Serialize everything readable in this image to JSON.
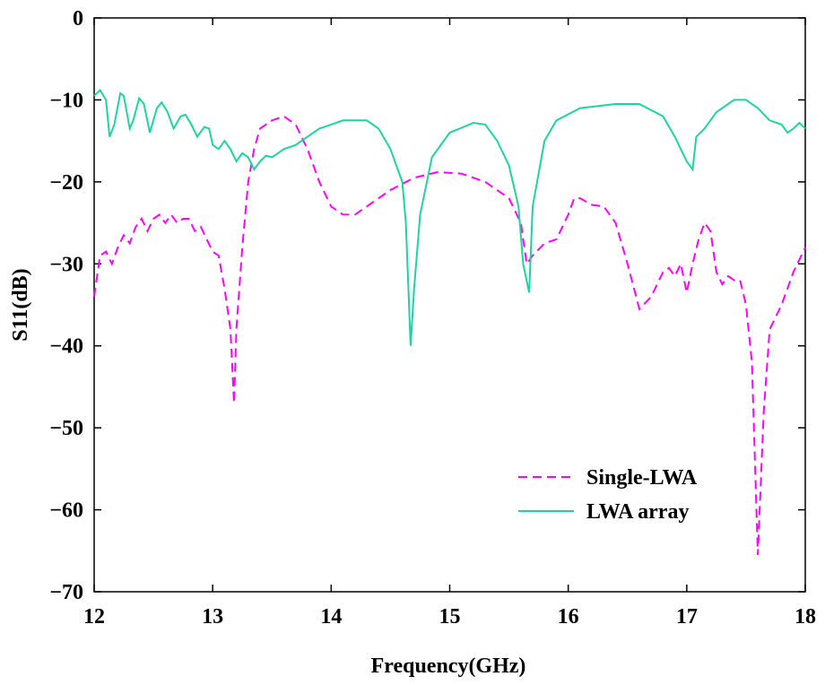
{
  "chart_data": {
    "type": "line",
    "xlabel": "Frequency(GHz)",
    "ylabel": "S11(dB)",
    "xlim": [
      12,
      18
    ],
    "ylim": [
      -70,
      0
    ],
    "xticks": [
      12,
      13,
      14,
      15,
      16,
      17,
      18
    ],
    "yticks": [
      0,
      {
        "value": -10,
        "label": "−10"
      },
      {
        "value": -20,
        "label": "−20"
      },
      {
        "value": -30,
        "label": "−30"
      },
      {
        "value": -40,
        "label": "−40"
      },
      {
        "value": -50,
        "label": "−50"
      },
      {
        "value": -60,
        "label": "−60"
      },
      {
        "value": -70,
        "label": "−70"
      }
    ],
    "legend": "lower right",
    "series": [
      {
        "name": "Single-LWA",
        "color": "#ff00ff",
        "dash": true,
        "x": [
          12.0,
          12.05,
          12.1,
          12.15,
          12.2,
          12.25,
          12.3,
          12.35,
          12.4,
          12.45,
          12.5,
          12.55,
          12.6,
          12.65,
          12.7,
          12.75,
          12.8,
          12.85,
          12.9,
          12.95,
          13.0,
          13.05,
          13.1,
          13.15,
          13.18,
          13.2,
          13.25,
          13.3,
          13.35,
          13.4,
          13.5,
          13.6,
          13.7,
          13.8,
          13.9,
          14.0,
          14.1,
          14.2,
          14.3,
          14.5,
          14.7,
          14.9,
          15.1,
          15.3,
          15.5,
          15.6,
          15.65,
          15.7,
          15.8,
          15.9,
          16.0,
          16.05,
          16.1,
          16.2,
          16.3,
          16.4,
          16.5,
          16.6,
          16.7,
          16.8,
          16.85,
          16.9,
          16.95,
          17.0,
          17.05,
          17.1,
          17.15,
          17.2,
          17.25,
          17.3,
          17.35,
          17.4,
          17.45,
          17.5,
          17.55,
          17.6,
          17.65,
          17.7,
          17.8,
          17.9,
          18.0
        ],
        "values": [
          -34,
          -29,
          -28.5,
          -30,
          -28,
          -26.5,
          -27.5,
          -25.5,
          -24.5,
          -26,
          -24.5,
          -24,
          -25,
          -24,
          -25,
          -24.5,
          -24.5,
          -26,
          -25.5,
          -27,
          -28.5,
          -29,
          -33,
          -38,
          -47,
          -38,
          -28,
          -20,
          -16,
          -13.5,
          -12.5,
          -12,
          -13,
          -16,
          -20,
          -23,
          -24,
          -24,
          -23,
          -21,
          -19.5,
          -18.8,
          -19,
          -20,
          -22,
          -25,
          -30,
          -29,
          -27.5,
          -27,
          -24,
          -22,
          -22,
          -22.8,
          -23,
          -25,
          -30,
          -35.5,
          -34,
          -31,
          -30.5,
          -31.5,
          -30,
          -33.5,
          -30,
          -27,
          -25,
          -26,
          -31,
          -32.5,
          -31.5,
          -32,
          -32,
          -35,
          -42,
          -65.5,
          -48,
          -38,
          -35,
          -31,
          -28
        ]
      },
      {
        "name": "LWA array",
        "color": "#1ed3a0",
        "dash": false,
        "x": [
          12.0,
          12.05,
          12.1,
          12.13,
          12.17,
          12.22,
          12.25,
          12.3,
          12.33,
          12.38,
          12.42,
          12.47,
          12.53,
          12.57,
          12.62,
          12.67,
          12.73,
          12.77,
          12.82,
          12.87,
          12.93,
          12.97,
          13.0,
          13.05,
          13.1,
          13.15,
          13.2,
          13.25,
          13.3,
          13.35,
          13.4,
          13.45,
          13.5,
          13.55,
          13.6,
          13.7,
          13.8,
          13.9,
          14.0,
          14.1,
          14.3,
          14.4,
          14.5,
          14.6,
          14.63,
          14.67,
          14.7,
          14.75,
          14.85,
          15.0,
          15.2,
          15.3,
          15.4,
          15.5,
          15.58,
          15.62,
          15.67,
          15.7,
          15.8,
          15.9,
          16.1,
          16.4,
          16.6,
          16.8,
          16.9,
          17.0,
          17.05,
          17.08,
          17.15,
          17.25,
          17.4,
          17.5,
          17.6,
          17.7,
          17.8,
          17.85,
          17.9,
          17.95,
          18.0
        ],
        "values": [
          -9.5,
          -8.8,
          -10,
          -14.5,
          -13,
          -9.2,
          -9.5,
          -13.5,
          -12.5,
          -9.8,
          -10.5,
          -14,
          -11,
          -10.3,
          -11.5,
          -13.5,
          -12,
          -11.8,
          -13,
          -14.5,
          -13.3,
          -13.5,
          -15.5,
          -16,
          -15,
          -16,
          -17.5,
          -16.5,
          -17,
          -18.5,
          -17.5,
          -16.8,
          -17,
          -16.5,
          -16,
          -15.5,
          -14.5,
          -13.5,
          -13,
          -12.5,
          -12.5,
          -13.5,
          -16,
          -20,
          -25,
          -40,
          -33,
          -24,
          -17,
          -14,
          -12.8,
          -13,
          -15,
          -18,
          -23,
          -30,
          -33.5,
          -23,
          -15,
          -12.5,
          -11,
          -10.5,
          -10.5,
          -12,
          -14.5,
          -17.5,
          -18.5,
          -14.5,
          -13.5,
          -11.5,
          -10,
          -10,
          -11,
          -12.5,
          -13,
          -14,
          -13.5,
          -12.8,
          -13.5
        ]
      }
    ]
  }
}
